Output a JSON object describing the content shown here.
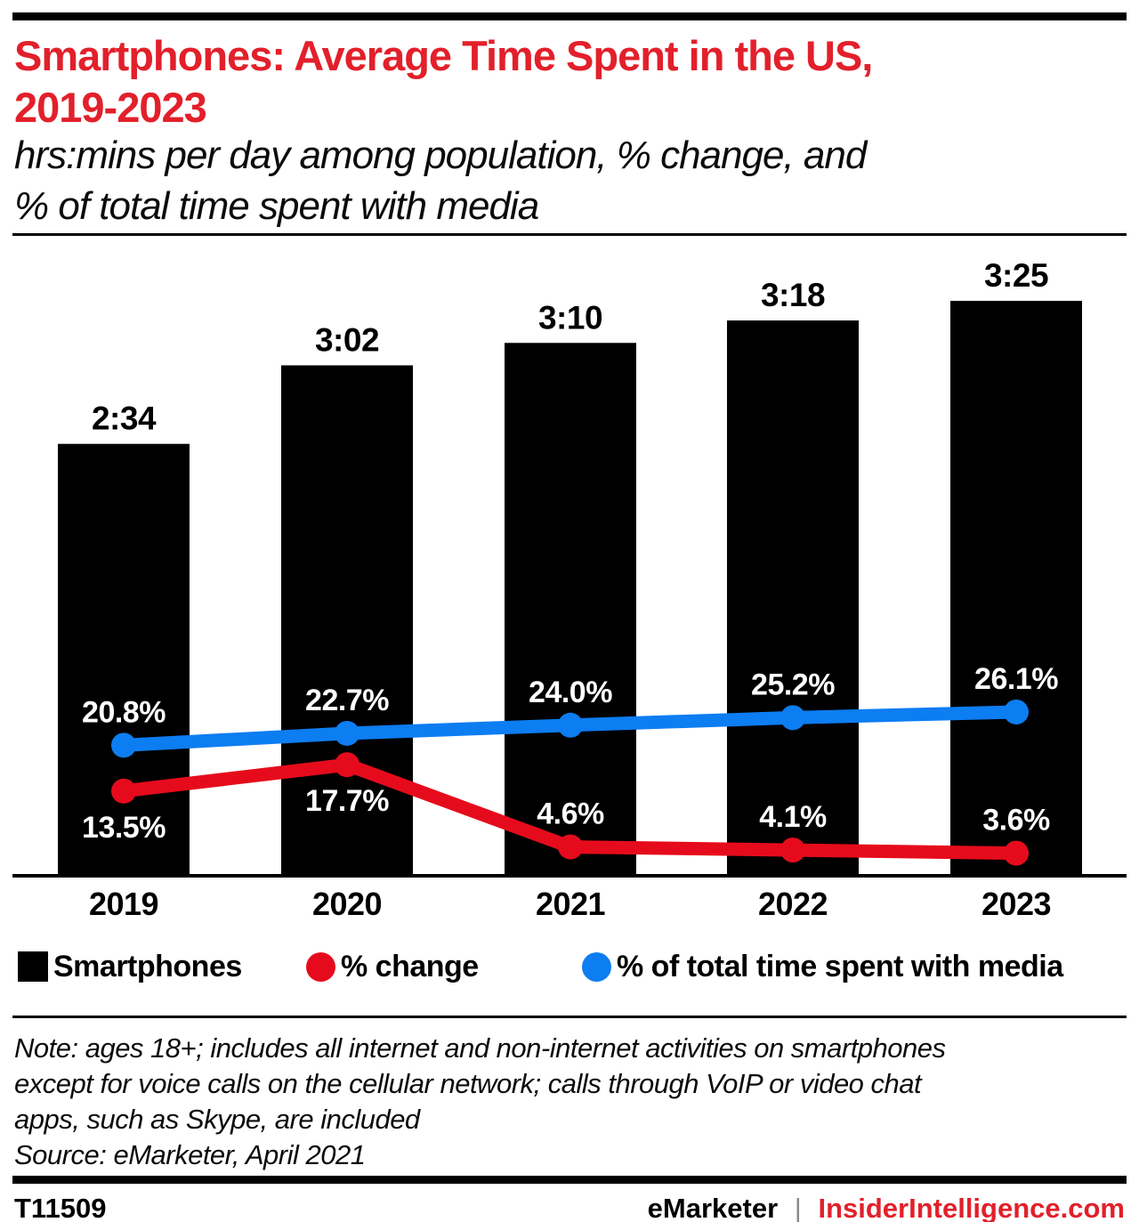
{
  "header": {
    "title_lines": [
      "Smartphones: Average Time Spent in the US,",
      "2019-2023"
    ],
    "subtitle_lines": [
      "hrs:mins per day among population, % change, and",
      "% of total time spent with media"
    ]
  },
  "colors": {
    "brand_red": "#e2202b",
    "line_red": "#e60b1c",
    "line_blue": "#0d7df2",
    "bar_black": "#000000",
    "label_on_bar": "#ffffff",
    "footer_divider_gray": "#8a8a8a"
  },
  "chart_data": {
    "type": "bar+line",
    "categories": [
      "2019",
      "2020",
      "2021",
      "2022",
      "2023"
    ],
    "series": [
      {
        "name": "Smartphones",
        "kind": "bar",
        "unit": "hrs:mins per day",
        "labels": [
          "2:34",
          "3:02",
          "3:10",
          "3:18",
          "3:25"
        ],
        "values_minutes": [
          154,
          182,
          190,
          198,
          205
        ],
        "color": "#000000",
        "label_color": "#000000"
      },
      {
        "name": "% change",
        "kind": "line",
        "unit": "%",
        "values": [
          13.5,
          17.7,
          4.6,
          4.1,
          3.6
        ],
        "labels": [
          "13.5%",
          "17.7%",
          "4.6%",
          "4.1%",
          "3.6%"
        ],
        "color": "#e60b1c",
        "label_positions": [
          "below",
          "below",
          "above",
          "above",
          "above"
        ]
      },
      {
        "name": "% of total time spent with media",
        "kind": "line",
        "unit": "%",
        "values": [
          20.8,
          22.7,
          24.0,
          25.2,
          26.1
        ],
        "labels": [
          "20.8%",
          "22.7%",
          "24.0%",
          "25.2%",
          "26.1%"
        ],
        "color": "#0d7df2",
        "label_positions": [
          "above",
          "above",
          "above",
          "above",
          "above"
        ]
      }
    ],
    "value_label_color_on_bars": "#ffffff",
    "axis": {
      "grid": false,
      "y_axis_shown": false,
      "baseline_color": "#000000"
    },
    "legend_position": "bottom"
  },
  "legend": {
    "items": [
      {
        "label": "Smartphones",
        "swatch": "square",
        "color": "#000000"
      },
      {
        "label": "% change",
        "swatch": "circle",
        "color": "#e60b1c"
      },
      {
        "label": "% of total time spent with media",
        "swatch": "circle",
        "color": "#0d7df2"
      }
    ]
  },
  "note": {
    "lines": [
      "Note: ages 18+; includes all internet and non-internet activities on smartphones",
      "except for voice calls on the cellular network; calls through VoIP or video chat",
      "apps, such as Skype, are included",
      "Source: eMarketer, April 2021"
    ]
  },
  "footer": {
    "chart_id": "T11509",
    "brand": "eMarketer",
    "divider": "|",
    "site": "InsiderIntelligence.com"
  }
}
